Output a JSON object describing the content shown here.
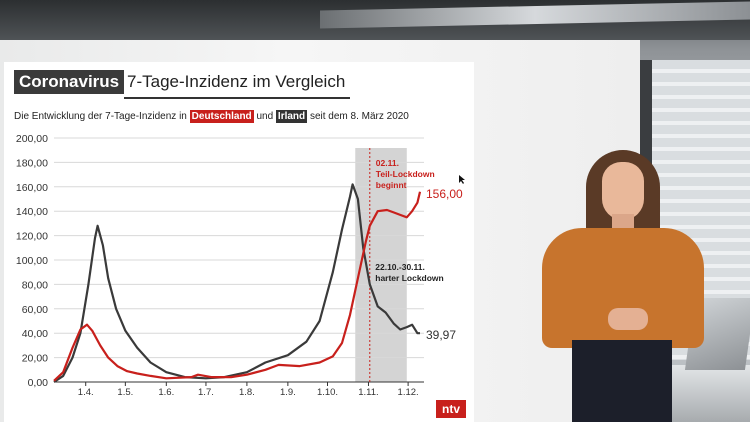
{
  "header": {
    "title_box": "Coronavirus",
    "title": "7-Tage-Inzidenz im Vergleich",
    "subtitle_pre": "Die Entwicklung der 7-Tage-Inzidenz in",
    "country_1": "Deutschland",
    "subtitle_mid": "und",
    "country_2": "Irland",
    "subtitle_post": "seit dem 8. März 2020"
  },
  "logo_text": "ntv",
  "colors": {
    "deutschland": "#c8201c",
    "irland": "#3a3a3a",
    "shade": "#d4d4d4"
  },
  "chart_data": {
    "type": "line",
    "title": "7-Tage-Inzidenz im Vergleich",
    "xlabel": "",
    "ylabel": "",
    "ylim": [
      0,
      200
    ],
    "yticks": [
      "0,00",
      "20,00",
      "40,00",
      "60,00",
      "80,00",
      "100,00",
      "120,00",
      "140,00",
      "160,00",
      "180,00",
      "200,00"
    ],
    "x_range": [
      "2020-03-08",
      "2020-12-10"
    ],
    "xticks": [
      {
        "date": "2020-04-01",
        "label": "1.4."
      },
      {
        "date": "2020-05-01",
        "label": "1.5."
      },
      {
        "date": "2020-06-01",
        "label": "1.6."
      },
      {
        "date": "2020-07-01",
        "label": "1.7."
      },
      {
        "date": "2020-08-01",
        "label": "1.8."
      },
      {
        "date": "2020-09-01",
        "label": "1.9."
      },
      {
        "date": "2020-10-01",
        "label": "1.10."
      },
      {
        "date": "2020-11-01",
        "label": "1.11."
      },
      {
        "date": "2020-12-01",
        "label": "1.12."
      }
    ],
    "grid": true,
    "legend": "none",
    "annotations": {
      "shade_start": "2020-10-22",
      "shade_end": "2020-11-30",
      "shade_label": [
        "22.10.-30.11.",
        "harter Lockdown"
      ],
      "line_date": "2020-11-02",
      "line_label": [
        "02.11.",
        "Teil-Lockdown",
        "beginnt"
      ],
      "end_label_deutschland": "156,00",
      "end_label_irland": "39,97"
    },
    "series": [
      {
        "name": "Deutschland",
        "points": [
          [
            "2020-03-08",
            1
          ],
          [
            "2020-03-15",
            8
          ],
          [
            "2020-03-22",
            28
          ],
          [
            "2020-03-28",
            43
          ],
          [
            "2020-04-02",
            47
          ],
          [
            "2020-04-06",
            42
          ],
          [
            "2020-04-12",
            30
          ],
          [
            "2020-04-18",
            20
          ],
          [
            "2020-04-25",
            13
          ],
          [
            "2020-05-02",
            9
          ],
          [
            "2020-05-10",
            7
          ],
          [
            "2020-05-20",
            5
          ],
          [
            "2020-06-01",
            3
          ],
          [
            "2020-06-20",
            4
          ],
          [
            "2020-06-25",
            6
          ],
          [
            "2020-07-05",
            4
          ],
          [
            "2020-07-20",
            4
          ],
          [
            "2020-08-01",
            6
          ],
          [
            "2020-08-15",
            10
          ],
          [
            "2020-08-25",
            14
          ],
          [
            "2020-09-10",
            13
          ],
          [
            "2020-09-25",
            16
          ],
          [
            "2020-10-05",
            21
          ],
          [
            "2020-10-12",
            32
          ],
          [
            "2020-10-18",
            55
          ],
          [
            "2020-10-25",
            90
          ],
          [
            "2020-10-30",
            115
          ],
          [
            "2020-11-02",
            128
          ],
          [
            "2020-11-08",
            140
          ],
          [
            "2020-11-15",
            141
          ],
          [
            "2020-11-20",
            139
          ],
          [
            "2020-11-25",
            137
          ],
          [
            "2020-11-30",
            135
          ],
          [
            "2020-12-04",
            140
          ],
          [
            "2020-12-08",
            147
          ],
          [
            "2020-12-10",
            156
          ]
        ]
      },
      {
        "name": "Irland",
        "points": [
          [
            "2020-03-08",
            0
          ],
          [
            "2020-03-15",
            5
          ],
          [
            "2020-03-22",
            20
          ],
          [
            "2020-03-28",
            40
          ],
          [
            "2020-04-03",
            80
          ],
          [
            "2020-04-08",
            118
          ],
          [
            "2020-04-10",
            128
          ],
          [
            "2020-04-14",
            112
          ],
          [
            "2020-04-18",
            85
          ],
          [
            "2020-04-24",
            60
          ],
          [
            "2020-05-01",
            42
          ],
          [
            "2020-05-10",
            28
          ],
          [
            "2020-05-20",
            16
          ],
          [
            "2020-06-01",
            8
          ],
          [
            "2020-06-15",
            4
          ],
          [
            "2020-07-01",
            3
          ],
          [
            "2020-07-15",
            4
          ],
          [
            "2020-08-01",
            8
          ],
          [
            "2020-08-15",
            16
          ],
          [
            "2020-09-01",
            22
          ],
          [
            "2020-09-15",
            33
          ],
          [
            "2020-09-25",
            50
          ],
          [
            "2020-10-05",
            90
          ],
          [
            "2020-10-12",
            125
          ],
          [
            "2020-10-18",
            152
          ],
          [
            "2020-10-20",
            162
          ],
          [
            "2020-10-24",
            150
          ],
          [
            "2020-10-28",
            110
          ],
          [
            "2020-11-02",
            80
          ],
          [
            "2020-11-08",
            62
          ],
          [
            "2020-11-14",
            57
          ],
          [
            "2020-11-20",
            48
          ],
          [
            "2020-11-25",
            43
          ],
          [
            "2020-11-30",
            45
          ],
          [
            "2020-12-04",
            47
          ],
          [
            "2020-12-08",
            40
          ],
          [
            "2020-12-10",
            40
          ]
        ]
      }
    ]
  }
}
